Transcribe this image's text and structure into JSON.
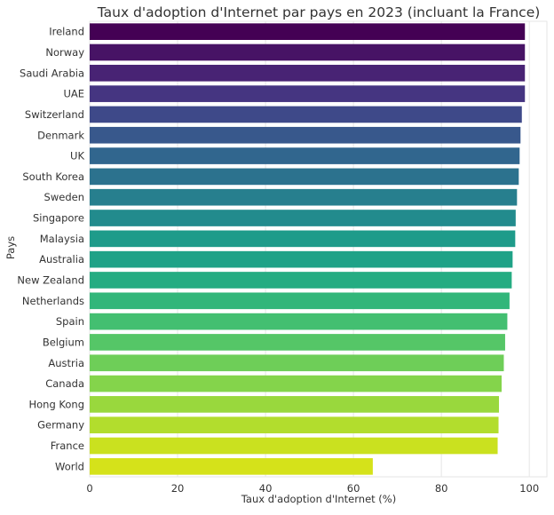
{
  "chart_data": {
    "type": "bar",
    "orientation": "horizontal",
    "title": "Taux d'adoption d'Internet par pays en 2023 (incluant la France)",
    "xlabel": "Taux d'adoption d'Internet (%)",
    "ylabel": "Pays",
    "xlim": [
      0,
      104
    ],
    "xticks": [
      0,
      20,
      40,
      60,
      80,
      100
    ],
    "grid": true,
    "colormap": "viridis",
    "categories": [
      "Ireland",
      "Norway",
      "Saudi Arabia",
      "UAE",
      "Switzerland",
      "Denmark",
      "UK",
      "South Korea",
      "Sweden",
      "Singapore",
      "Malaysia",
      "Australia",
      "New Zealand",
      "Netherlands",
      "Spain",
      "Belgium",
      "Austria",
      "Canada",
      "Hong Kong",
      "Germany",
      "France",
      "World"
    ],
    "values": [
      99,
      99,
      99,
      99,
      98.3,
      98,
      97.8,
      97.6,
      97.2,
      96.9,
      96.8,
      96.2,
      96,
      95.5,
      95,
      94.5,
      94.2,
      93.7,
      93.1,
      93,
      92.8,
      64.4
    ],
    "colors": [
      "#440154",
      "#471365",
      "#482374",
      "#453581",
      "#3e4989",
      "#38588c",
      "#31668e",
      "#2c728e",
      "#277f8e",
      "#228b8d",
      "#1e9b8a",
      "#1fa287",
      "#25ac82",
      "#32b67a",
      "#43bf71",
      "#55c667",
      "#6ece58",
      "#84d44b",
      "#99d83d",
      "#b2dd2d",
      "#cae11f",
      "#d5e21a"
    ]
  }
}
